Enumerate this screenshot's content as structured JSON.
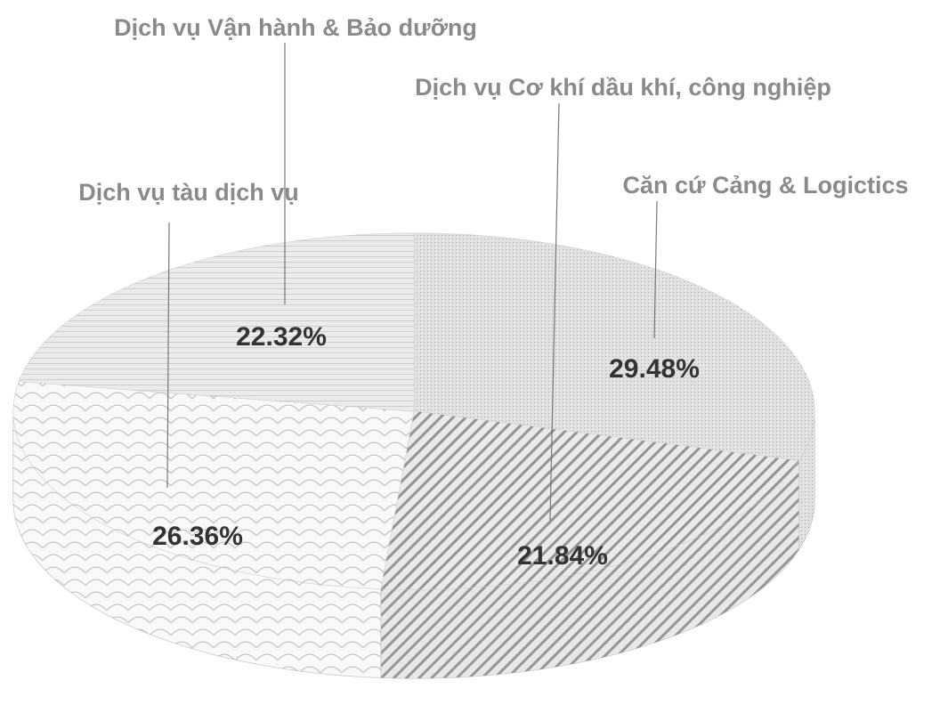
{
  "chart_data": {
    "type": "pie",
    "three_d": true,
    "categories": [
      "Căn cứ Cảng & Logictics",
      "Dịch vụ Cơ khí dầu khí, công nghiệp",
      "Dịch vụ tàu dịch vụ",
      "Dịch vụ Vận hành & Bảo dưỡng"
    ],
    "values": [
      29.48,
      21.84,
      26.36,
      22.32
    ],
    "value_labels": [
      "29.48%",
      "21.84%",
      "26.36%",
      "22.32%"
    ],
    "colors": [
      "#d9d9d9",
      "#c4c4c4",
      "#f2f2f2",
      "#e6e6e6"
    ]
  }
}
